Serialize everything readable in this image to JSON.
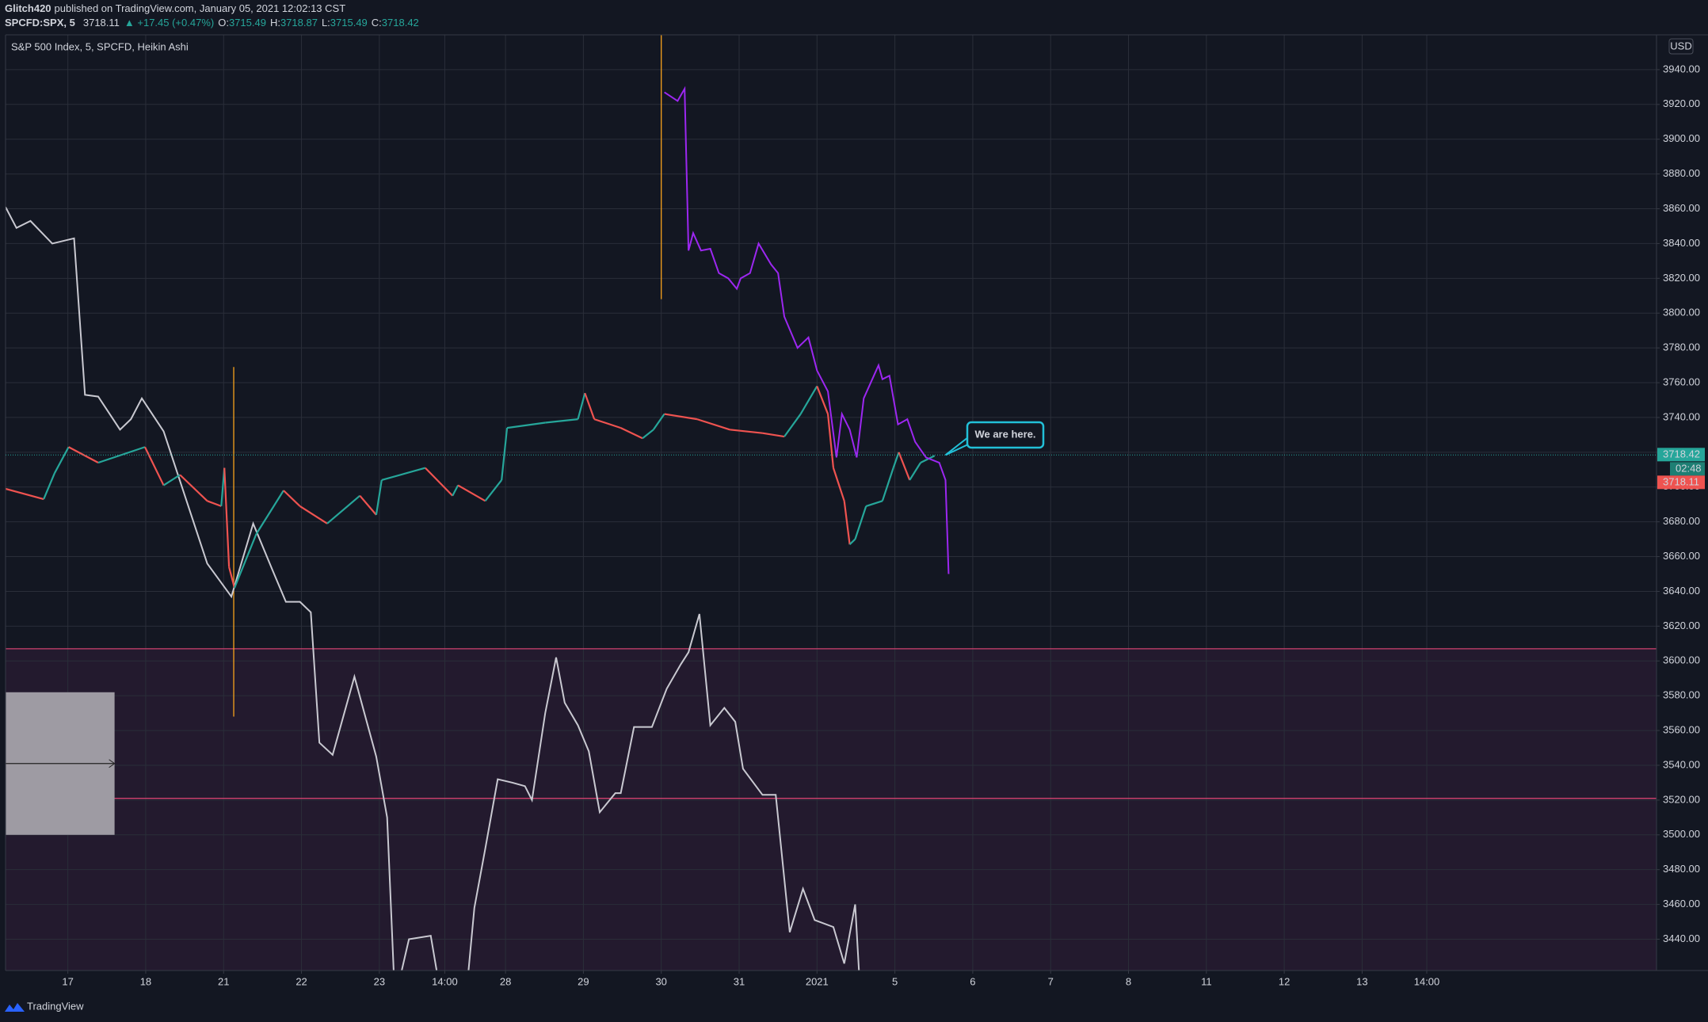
{
  "header": {
    "publisher": "Glitch420",
    "published": "published on TradingView.com, January 05, 2021 12:02:13 CST",
    "symbol": "SPCFD:SPX, 5",
    "last": 3718.11,
    "change": "▲ +17.45 (+0.47%)",
    "ohlc": [
      {
        "label": "O:",
        "value": 3715.49
      },
      {
        "label": "H:",
        "value": 3718.87
      },
      {
        "label": "L:",
        "value": 3715.49
      },
      {
        "label": "C:",
        "value": 3718.42
      }
    ]
  },
  "footer": {
    "brand": "TradingView"
  },
  "chart_data": {
    "type": "line",
    "title": "S&P 500 Index, 5, SPCFD, Heikin Ashi",
    "currency": "USD",
    "grid": true,
    "xlim": [
      0.2,
      21.4
    ],
    "ylim": [
      3422,
      3960
    ],
    "xticks": [
      {
        "value": 1,
        "label": "17"
      },
      {
        "value": 2,
        "label": "18"
      },
      {
        "value": 3,
        "label": "21"
      },
      {
        "value": 4,
        "label": "22"
      },
      {
        "value": 5,
        "label": "23"
      },
      {
        "value": 5.84,
        "label": "14:00"
      },
      {
        "value": 6.62,
        "label": "28"
      },
      {
        "value": 7.62,
        "label": "29"
      },
      {
        "value": 8.62,
        "label": "30"
      },
      {
        "value": 9.62,
        "label": "31"
      },
      {
        "value": 10.62,
        "label": "2021"
      },
      {
        "value": 11.62,
        "label": "5"
      },
      {
        "value": 12.62,
        "label": "6"
      },
      {
        "value": 13.62,
        "label": "7"
      },
      {
        "value": 14.62,
        "label": "8"
      },
      {
        "value": 15.62,
        "label": "11"
      },
      {
        "value": 16.62,
        "label": "12"
      },
      {
        "value": 17.62,
        "label": "13"
      },
      {
        "value": 18.45,
        "label": "14:00"
      }
    ],
    "yticks": [
      {
        "value": 3440,
        "label": "3440.00"
      },
      {
        "value": 3460,
        "label": "3460.00"
      },
      {
        "value": 3480,
        "label": "3480.00"
      },
      {
        "value": 3500,
        "label": "3500.00"
      },
      {
        "value": 3520,
        "label": "3520.00"
      },
      {
        "value": 3540,
        "label": "3540.00"
      },
      {
        "value": 3560,
        "label": "3560.00"
      },
      {
        "value": 3580,
        "label": "3580.00"
      },
      {
        "value": 3600,
        "label": "3600.00"
      },
      {
        "value": 3620,
        "label": "3620.00"
      },
      {
        "value": 3640,
        "label": "3640.00"
      },
      {
        "value": 3660,
        "label": "3660.00"
      },
      {
        "value": 3680,
        "label": "3680.00"
      },
      {
        "value": 3700,
        "label": "3700.00"
      },
      {
        "value": 3720,
        "label": "3720.00"
      },
      {
        "value": 3740,
        "label": "3740.00"
      },
      {
        "value": 3760,
        "label": "3760.00"
      },
      {
        "value": 3780,
        "label": "3780.00"
      },
      {
        "value": 3800,
        "label": "3800.00"
      },
      {
        "value": 3820,
        "label": "3820.00"
      },
      {
        "value": 3840,
        "label": "3840.00"
      },
      {
        "value": 3860,
        "label": "3860.00"
      },
      {
        "value": 3880,
        "label": "3880.00"
      },
      {
        "value": 3900,
        "label": "3900.00"
      },
      {
        "value": 3920,
        "label": "3920.00"
      },
      {
        "value": 3940,
        "label": "3940.00"
      }
    ],
    "zone": {
      "top": 3607,
      "color": "#231a2e"
    },
    "horizontal_lines": [
      {
        "value": 3607,
        "color": "#d0416e"
      },
      {
        "value": 3521,
        "color": "#d0416e"
      }
    ],
    "vertical_lines": [
      {
        "x": 3.13,
        "ymin": 3568,
        "ymax": 3769,
        "color": "#f7a21b"
      },
      {
        "x": 8.62,
        "ymin": 3808,
        "ymax": 3960,
        "color": "#f7a21b"
      }
    ],
    "box": {
      "x0": 0.2,
      "x1": 1.6,
      "ymin": 3500,
      "ymax": 3582,
      "arrow": 3541,
      "color": "#9e9ba3"
    },
    "series": [
      {
        "color": "#c9c9d1",
        "x": [
          0.2,
          0.34,
          0.52,
          0.8,
          1.08,
          1.22,
          1.39,
          1.67,
          1.81,
          1.95,
          2.23,
          2.79,
          3.1,
          3.38,
          3.63,
          3.8,
          3.98,
          4.12,
          4.23,
          4.4,
          4.68,
          4.96,
          5.1,
          5.2,
          5.38,
          5.66,
          5.8,
          6.12,
          6.22,
          6.36,
          6.52,
          6.71,
          6.87,
          6.96,
          7.13,
          7.27,
          7.38,
          7.55,
          7.69,
          7.83,
          8.03,
          8.1,
          8.27,
          8.5,
          8.69,
          8.87,
          8.97,
          9.11,
          9.25,
          9.43,
          9.57,
          9.67,
          9.92,
          10.09,
          10.27,
          10.44,
          10.59,
          10.83,
          10.97,
          11.11,
          11.18
        ],
        "values": [
          3861,
          3849,
          3853,
          3840,
          3843,
          3753,
          3752,
          3733,
          3739,
          3751,
          3732,
          3656,
          3637,
          3679,
          3652,
          3634,
          3634,
          3628,
          3553,
          3546,
          3591,
          3545,
          3510,
          3405,
          3440,
          3442,
          3405,
          3410,
          3458,
          3492,
          3532,
          3530,
          3528,
          3520,
          3570,
          3602,
          3576,
          3563,
          3548,
          3513,
          3524,
          3524,
          3562,
          3562,
          3584,
          3598,
          3605,
          3627,
          3563,
          3573,
          3565,
          3538,
          3523,
          3523,
          3444,
          3469,
          3451,
          3447,
          3426,
          3460,
          3405
        ]
      },
      {
        "up_color": "#26a69a",
        "down_color": "#ef5350",
        "x": [
          0.2,
          0.69,
          0.83,
          1.01,
          1.39,
          1.99,
          2.23,
          2.44,
          2.79,
          2.97,
          3.01,
          3.07,
          3.14,
          3.42,
          3.77,
          3.98,
          4.33,
          4.75,
          4.96,
          5.03,
          5.59,
          5.94,
          6.01,
          6.36,
          6.57,
          6.64,
          7.13,
          7.55,
          7.64,
          7.76,
          8.1,
          8.38,
          8.52,
          8.66,
          9.08,
          9.5,
          9.92,
          10.2,
          10.41,
          10.62,
          10.76,
          10.83,
          10.97,
          11.04,
          11.11,
          11.25,
          11.46,
          11.6,
          11.67,
          11.81,
          11.95,
          12.13
        ],
        "values": [
          3699,
          3693,
          3708,
          3723,
          3714,
          3723,
          3701,
          3707,
          3692,
          3689,
          3711,
          3654,
          3642,
          3673,
          3698,
          3689,
          3679,
          3695,
          3684,
          3704,
          3711,
          3695,
          3701,
          3692,
          3704,
          3734,
          3737,
          3739,
          3754,
          3739,
          3734,
          3728,
          3733,
          3742,
          3739,
          3733,
          3731,
          3729,
          3742,
          3758,
          3742,
          3711,
          3692,
          3667,
          3670,
          3689,
          3692,
          3711,
          3720,
          3704,
          3714,
          3718
        ]
      },
      {
        "color": "#9c27f0",
        "x": [
          8.66,
          8.83,
          8.92,
          8.97,
          9.03,
          9.13,
          9.25,
          9.36,
          9.48,
          9.59,
          9.64,
          9.76,
          9.87,
          10.03,
          10.12,
          10.2,
          10.37,
          10.51,
          10.62,
          10.76,
          10.87,
          10.94,
          11.04,
          11.13,
          11.22,
          11.32,
          11.41,
          11.46,
          11.55,
          11.66,
          11.78,
          11.88,
          12.02,
          12.19,
          12.27,
          12.31
        ],
        "values": [
          3927,
          3922,
          3929,
          3836,
          3846,
          3836,
          3837,
          3823,
          3820,
          3814,
          3820,
          3823,
          3840,
          3828,
          3823,
          3798,
          3780,
          3786,
          3767,
          3755,
          3717,
          3742,
          3733,
          3717,
          3751,
          3761,
          3770,
          3762,
          3764,
          3736,
          3739,
          3726,
          3717,
          3714,
          3704,
          3650
        ]
      }
    ],
    "last_price": 3718.42,
    "countdown": "02:48",
    "close_price": 3718.11,
    "annotation": "We are here."
  }
}
